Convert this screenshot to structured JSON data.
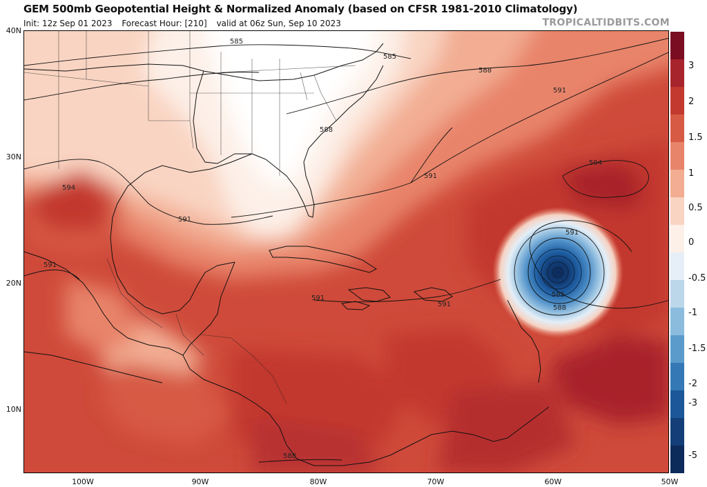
{
  "title": "GEM 500mb Geopotential Height & Normalized Anomaly (based on CFSR 1981-2010 Climatology)",
  "init": "Init: 12z Sep 01 2023",
  "forecast_hour": "Forecast Hour: [210]",
  "valid": "valid at 06z Sun, Sep 10 2023",
  "brand": "TROPICALTIDBITS.COM",
  "lat_labels": [
    "40N",
    "30N",
    "20N",
    "10N"
  ],
  "lon_labels": [
    "100W",
    "90W",
    "80W",
    "70W",
    "60W",
    "50W"
  ],
  "colorbar_labels": [
    "3",
    "2",
    "1.5",
    "1",
    "0.5",
    "0",
    "-0.5",
    "-1",
    "-1.5",
    "-2",
    "-3",
    "-5"
  ],
  "colorbar_colors": [
    "#7a0d22",
    "#a8242c",
    "#c3392f",
    "#d75a45",
    "#e8846a",
    "#f2ad93",
    "#f9d4c2",
    "#fdf0e8",
    "#e6eff7",
    "#bcd6ea",
    "#8bbcdd",
    "#5a9bcc",
    "#3478b6",
    "#1b5799",
    "#133e78",
    "#0c2a5a"
  ],
  "contour_labels": {
    "c585_north": "585",
    "c585_east": "585",
    "c588_atlantic": "588",
    "c588_georgia": "588",
    "c591_atlantic": "591",
    "c594_east": "594",
    "c591_bahamas": "591",
    "c594_texas": "594",
    "c591_gulf": "591",
    "c591_mexico": "591",
    "c591_cuba": "591",
    "c591_hisp": "591",
    "c591_low": "591",
    "c585_low": "585",
    "c588_low": "588",
    "c588_south": "588"
  }
}
